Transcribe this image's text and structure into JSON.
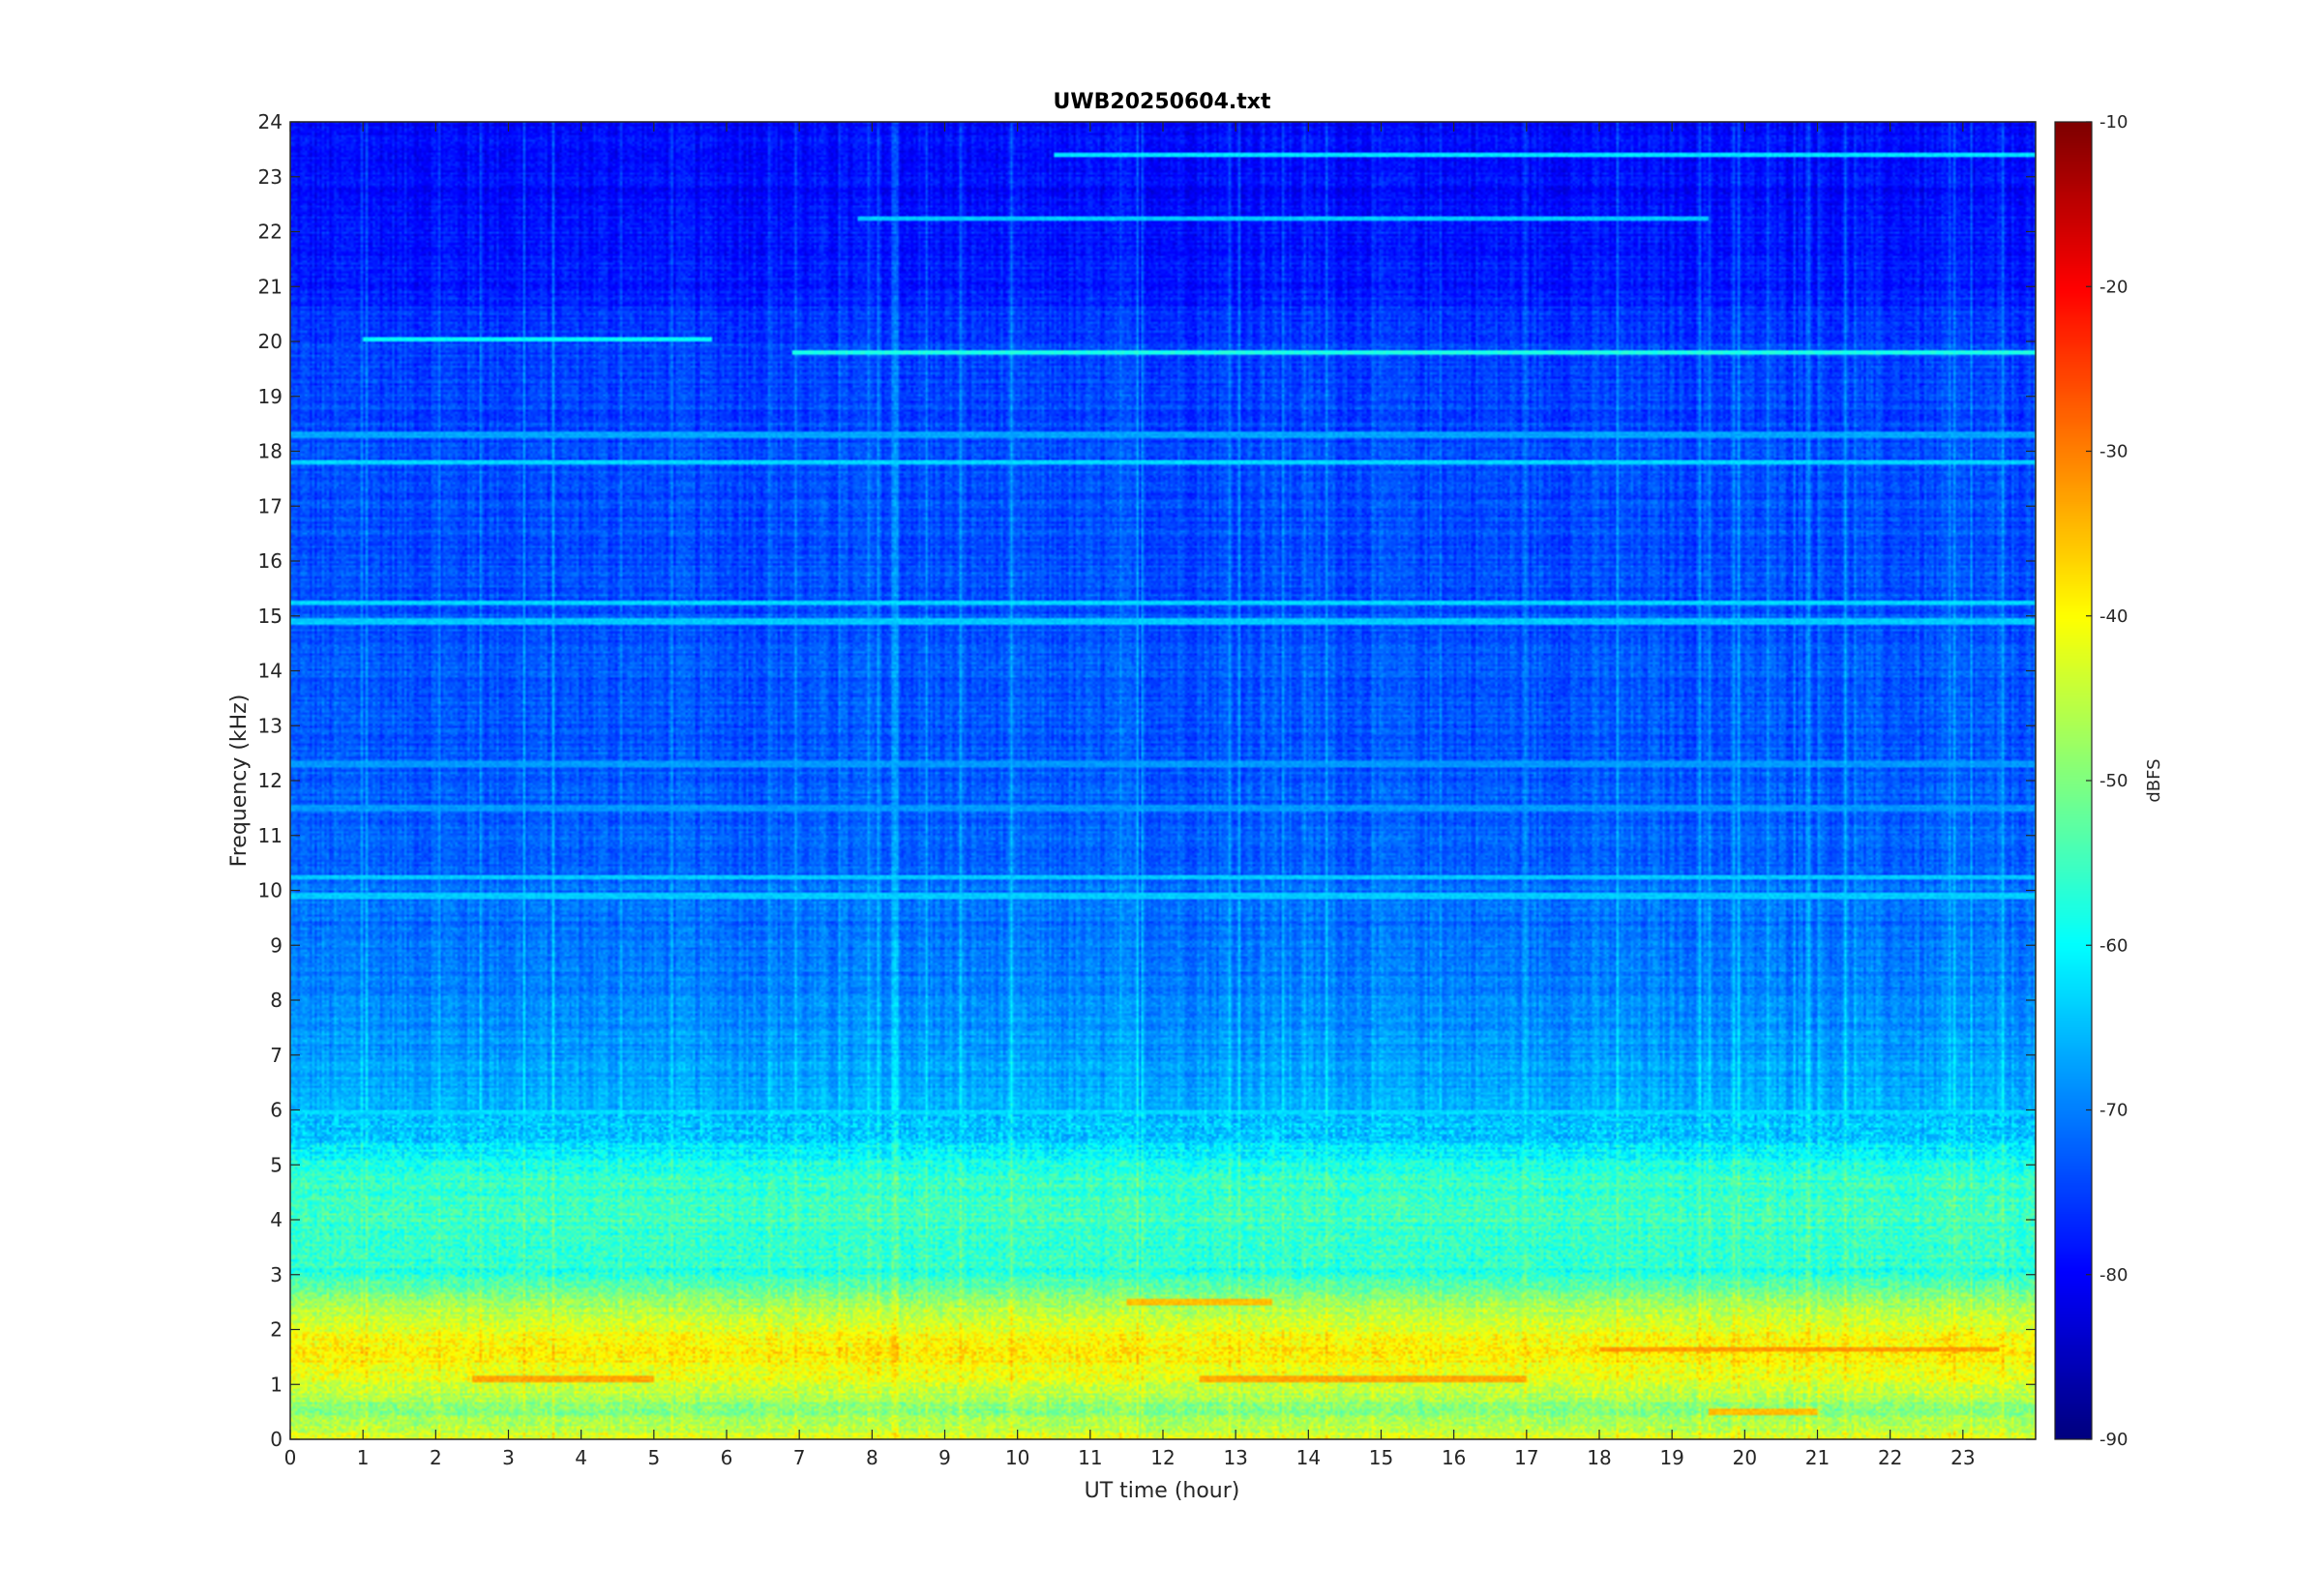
{
  "chart_data": {
    "type": "heatmap",
    "title": "UWB20250604.txt",
    "xlabel": "UT time (hour)",
    "ylabel": "Frequency (kHz)",
    "xlim": [
      0,
      24
    ],
    "ylim": [
      0,
      24
    ],
    "x_ticks": [
      "0",
      "1",
      "2",
      "3",
      "4",
      "5",
      "6",
      "7",
      "8",
      "9",
      "10",
      "11",
      "12",
      "13",
      "14",
      "15",
      "16",
      "17",
      "18",
      "19",
      "20",
      "21",
      "22",
      "23"
    ],
    "y_ticks": [
      "0",
      "1",
      "2",
      "3",
      "4",
      "5",
      "6",
      "7",
      "8",
      "9",
      "10",
      "11",
      "12",
      "13",
      "14",
      "15",
      "16",
      "17",
      "18",
      "19",
      "20",
      "21",
      "22",
      "23",
      "24"
    ],
    "colorbar": {
      "label": "dBFS",
      "range": [
        -90,
        -10
      ],
      "ticks": [
        "-10",
        "-20",
        "-30",
        "-40",
        "-50",
        "-60",
        "-70",
        "-80",
        "-90"
      ],
      "colormap": "jet"
    },
    "spectral_profile": [
      {
        "freq_khz": 0.0,
        "level_dbfs": -42
      },
      {
        "freq_khz": 0.5,
        "level_dbfs": -50
      },
      {
        "freq_khz": 1.0,
        "level_dbfs": -43
      },
      {
        "freq_khz": 1.6,
        "level_dbfs": -38
      },
      {
        "freq_khz": 2.0,
        "level_dbfs": -42
      },
      {
        "freq_khz": 2.5,
        "level_dbfs": -48
      },
      {
        "freq_khz": 3.0,
        "level_dbfs": -57
      },
      {
        "freq_khz": 4.0,
        "level_dbfs": -55
      },
      {
        "freq_khz": 4.8,
        "level_dbfs": -56
      },
      {
        "freq_khz": 5.5,
        "level_dbfs": -64
      },
      {
        "freq_khz": 7.0,
        "level_dbfs": -68
      },
      {
        "freq_khz": 9.0,
        "level_dbfs": -71
      },
      {
        "freq_khz": 12.0,
        "level_dbfs": -73
      },
      {
        "freq_khz": 16.0,
        "level_dbfs": -74
      },
      {
        "freq_khz": 20.0,
        "level_dbfs": -75
      },
      {
        "freq_khz": 21.0,
        "level_dbfs": -78
      },
      {
        "freq_khz": 24.0,
        "level_dbfs": -80
      }
    ],
    "tonal_lines": [
      {
        "freq_khz": 19.8,
        "start_hour": 6.9,
        "end_hour": 24,
        "level_dbfs": -58
      },
      {
        "freq_khz": 20.05,
        "start_hour": 1.0,
        "end_hour": 5.8,
        "level_dbfs": -60
      },
      {
        "freq_khz": 23.4,
        "start_hour": 10.5,
        "end_hour": 24,
        "level_dbfs": -62
      },
      {
        "freq_khz": 17.8,
        "start_hour": 0,
        "end_hour": 24,
        "level_dbfs": -63
      },
      {
        "freq_khz": 15.25,
        "start_hour": 0,
        "end_hour": 24,
        "level_dbfs": -63
      },
      {
        "freq_khz": 14.9,
        "start_hour": 0,
        "end_hour": 24,
        "level_dbfs": -64
      },
      {
        "freq_khz": 10.25,
        "start_hour": 0,
        "end_hour": 24,
        "level_dbfs": -64
      },
      {
        "freq_khz": 9.9,
        "start_hour": 0,
        "end_hour": 24,
        "level_dbfs": -64
      },
      {
        "freq_khz": 18.3,
        "start_hour": 0,
        "end_hour": 24,
        "level_dbfs": -67
      },
      {
        "freq_khz": 12.3,
        "start_hour": 0,
        "end_hour": 24,
        "level_dbfs": -68
      },
      {
        "freq_khz": 11.5,
        "start_hour": 0,
        "end_hour": 24,
        "level_dbfs": -68
      },
      {
        "freq_khz": 5.95,
        "start_hour": 0,
        "end_hour": 24,
        "level_dbfs": -63
      },
      {
        "freq_khz": 22.25,
        "start_hour": 7.8,
        "end_hour": 19.5,
        "level_dbfs": -64
      },
      {
        "freq_khz": 1.1,
        "start_hour": 2.5,
        "end_hour": 5.0,
        "level_dbfs": -33
      },
      {
        "freq_khz": 1.1,
        "start_hour": 12.5,
        "end_hour": 17.0,
        "level_dbfs": -33
      },
      {
        "freq_khz": 1.65,
        "start_hour": 18.0,
        "end_hour": 23.5,
        "level_dbfs": -32
      },
      {
        "freq_khz": 2.5,
        "start_hour": 11.5,
        "end_hour": 13.5,
        "level_dbfs": -35
      },
      {
        "freq_khz": 0.5,
        "start_hour": 19.5,
        "end_hour": 21.0,
        "level_dbfs": -35
      }
    ]
  }
}
